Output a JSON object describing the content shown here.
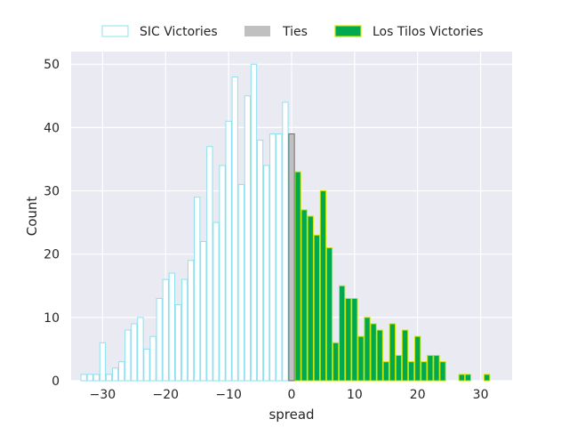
{
  "chart_data": {
    "type": "bar",
    "xlabel": "spread",
    "ylabel": "Count",
    "xlim": [
      -35,
      35
    ],
    "ylim": [
      0,
      52
    ],
    "xticks": [
      -30,
      -20,
      -10,
      0,
      10,
      20,
      30
    ],
    "yticks": [
      0,
      10,
      20,
      30,
      40,
      50
    ],
    "grid": true,
    "legend_position": "top-center",
    "bin_width": 1,
    "series": [
      {
        "name": "SIC Victories",
        "style": "outline",
        "color": "#8ee0ef",
        "x": [
          -33,
          -32,
          -31,
          -30,
          -29,
          -28,
          -27,
          -26,
          -25,
          -24,
          -23,
          -22,
          -21,
          -20,
          -19,
          -18,
          -17,
          -16,
          -15,
          -14,
          -13,
          -12,
          -11,
          -10,
          -9,
          -8,
          -7,
          -6,
          -5,
          -4,
          -3,
          -2,
          -1
        ],
        "values": [
          1,
          1,
          1,
          6,
          1,
          2,
          3,
          8,
          9,
          10,
          5,
          7,
          13,
          16,
          17,
          12,
          16,
          19,
          29,
          22,
          37,
          25,
          34,
          41,
          48,
          31,
          45,
          50,
          38,
          34,
          39,
          39,
          44
        ]
      },
      {
        "name": "Ties",
        "style": "filled",
        "color": "#c0c0c0",
        "x": [
          0
        ],
        "values": [
          39
        ]
      },
      {
        "name": "Los Tilos Victories",
        "style": "filled",
        "color": "#00a852",
        "edge_color": "#c8e600",
        "x": [
          1,
          2,
          3,
          4,
          5,
          6,
          7,
          8,
          9,
          10,
          11,
          12,
          13,
          14,
          15,
          16,
          17,
          18,
          19,
          20,
          21,
          22,
          23,
          24,
          25,
          26,
          27,
          28,
          29,
          30,
          31
        ],
        "values": [
          33,
          27,
          26,
          23,
          30,
          21,
          6,
          15,
          13,
          13,
          7,
          10,
          9,
          8,
          3,
          9,
          4,
          8,
          3,
          7,
          3,
          4,
          4,
          3,
          0,
          0,
          1,
          1,
          0,
          0,
          1
        ]
      }
    ]
  }
}
